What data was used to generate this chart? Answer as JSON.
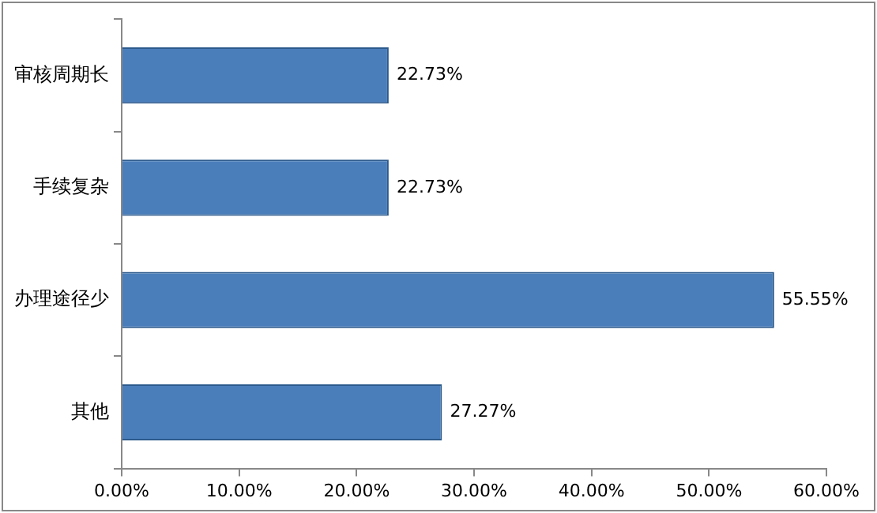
{
  "chart_data": {
    "type": "bar",
    "orientation": "horizontal",
    "categories": [
      "审核周期长",
      "手续复杂",
      "办理途径少",
      "其他"
    ],
    "values": [
      22.73,
      22.73,
      55.55,
      27.27
    ],
    "color": "#4a7ebb",
    "value_labels": [
      "22.73%",
      "22.73%",
      "55.55%",
      "27.27%"
    ],
    "xlim": [
      0,
      60
    ],
    "xticks": [
      {
        "value": 0,
        "label": "0.00%"
      },
      {
        "value": 10,
        "label": "10.00%"
      },
      {
        "value": 20,
        "label": "20.00%"
      },
      {
        "value": 30,
        "label": "30.00%"
      },
      {
        "value": 40,
        "label": "40.00%"
      },
      {
        "value": 50,
        "label": "50.00%"
      },
      {
        "value": 60,
        "label": "60.00%"
      }
    ]
  }
}
